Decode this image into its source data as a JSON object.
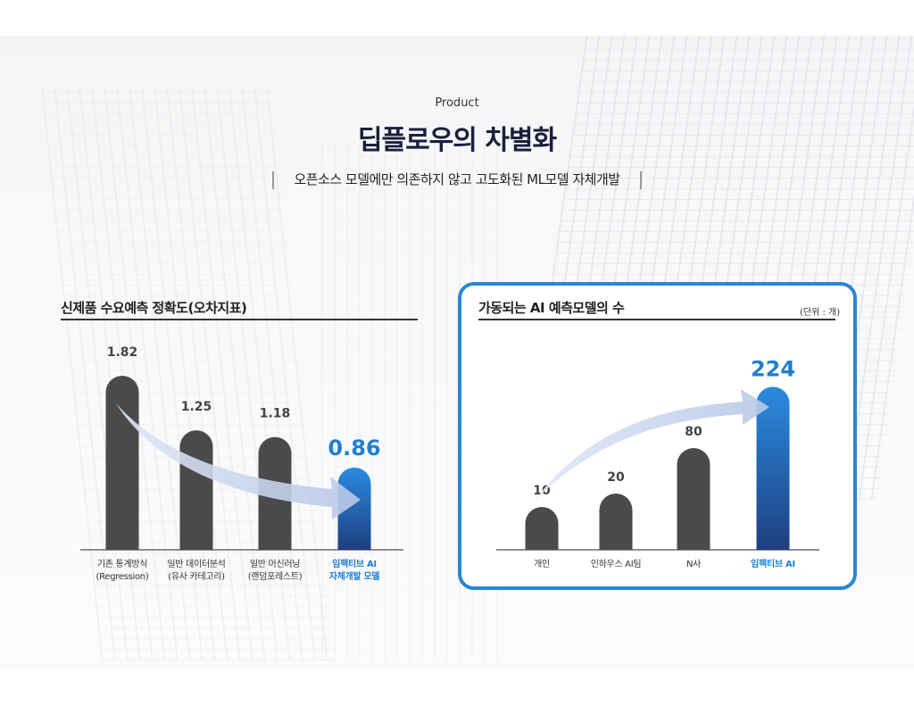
{
  "header": {
    "tag": "Product",
    "title": "딥플로우의 차별화",
    "subtitle": "오픈소스 모델에만 의존하지 않고 고도화된 ML모델 자체개발"
  },
  "colors": {
    "bar_gray": "#4a4a4c",
    "bar_blue_top": "#2a8be0",
    "bar_blue_bottom": "#1e3f80",
    "accent": "#2a86d6",
    "arrow": "#b8c8e8"
  },
  "chart_data": [
    {
      "type": "bar",
      "title": "신제품 수요예측 정확도(오차지표)",
      "categories": [
        [
          "기존 통계방식",
          "(Regression)"
        ],
        [
          "일반 데이터분석",
          "(유사 카테고리)"
        ],
        [
          "일반 머신러닝",
          "(랜덤포레스트)"
        ],
        [
          "임팩티브 AI",
          "자체개발 모델"
        ]
      ],
      "values": [
        1.82,
        1.25,
        1.18,
        0.86
      ],
      "value_labels": [
        "1.82",
        "1.25",
        "1.18",
        "0.86"
      ],
      "highlight_index": 3,
      "arrow": "decreasing",
      "ylim": [
        0,
        2
      ]
    },
    {
      "type": "bar",
      "title": "가동되는 AI 예측모델의 수",
      "unit": "(단위 : 개)",
      "categories": [
        [
          "개인"
        ],
        [
          "인하우스 AI팀"
        ],
        [
          "N사"
        ],
        [
          "임팩티브 AI"
        ]
      ],
      "values": [
        10,
        20,
        80,
        224
      ],
      "value_labels": [
        "10",
        "20",
        "80",
        "224"
      ],
      "highlight_index": 3,
      "arrow": "increasing",
      "scale": "nonlinear"
    }
  ]
}
